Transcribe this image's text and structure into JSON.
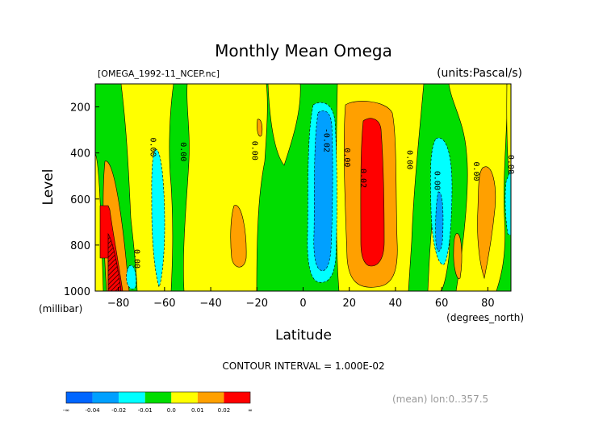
{
  "chart_data": {
    "type": "heatmap",
    "title": "Monthly Mean Omega",
    "file_label": "[OMEGA_1992-11_NCEP.nc]",
    "units_label": "(units:Pascal/s)",
    "xlabel": "Latitude",
    "x_units": "(degrees_north)",
    "ylabel": "Level",
    "y_units": "(millibar)",
    "x_ticks": [
      "-80",
      "-60",
      "-40",
      "-20",
      "0",
      "20",
      "40",
      "60",
      "80"
    ],
    "y_ticks": [
      "200",
      "400",
      "600",
      "800",
      "1000"
    ],
    "xlim": [
      -90,
      90
    ],
    "ylim": [
      1000,
      100
    ],
    "contour_interval": "CONTOUR INTERVAL = 1.000E-02",
    "footer": "(mean) lon:0..357.5",
    "contour_labels": [
      "0.00",
      "0.00",
      "0.00",
      "0.00",
      "-0.02",
      "0.00",
      "0.02",
      "0.00",
      "0.00",
      "0.00",
      "0.00"
    ],
    "colorbar": {
      "labels": [
        "-∞",
        "-0.04",
        "-0.02",
        "-0.01",
        "0.0",
        "0.01",
        "0.02",
        "∞"
      ],
      "colors": [
        "#0066ff",
        "#00a0ff",
        "#00ffff",
        "#00dd00",
        "#ffff00",
        "#ffa000",
        "#ff0000"
      ]
    },
    "palette": {
      "pos_high": "#ff0000",
      "pos_mid": "#ffa000",
      "pos_low": "#ffff00",
      "neutral": "#00dd00",
      "neg_low": "#00ffff",
      "neg_mid": "#00a0ff",
      "neg_high": "#0066ff",
      "extreme_neg": "#9b0000"
    }
  }
}
